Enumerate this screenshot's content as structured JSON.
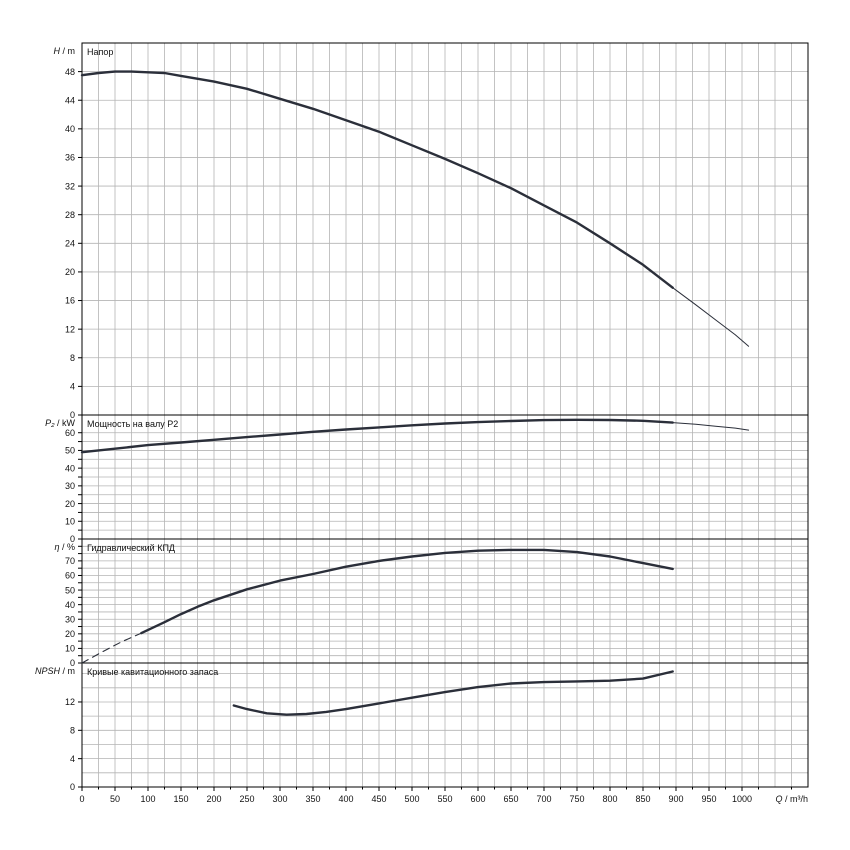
{
  "chart_data": {
    "type": "line",
    "x_axis": {
      "label": "Q / m³/h",
      "min": 0,
      "max": 1100,
      "ticks": [
        0,
        50,
        100,
        150,
        200,
        250,
        300,
        350,
        400,
        450,
        500,
        550,
        600,
        650,
        700,
        750,
        800,
        850,
        900,
        950,
        1000
      ]
    },
    "panels": [
      {
        "id": "head",
        "title": "Напор",
        "y_label_main": "H",
        "y_label_unit": "m",
        "ylim": [
          0,
          52
        ],
        "yticks": [
          0,
          4,
          8,
          12,
          16,
          20,
          24,
          28,
          32,
          36,
          40,
          44,
          48
        ],
        "series": [
          {
            "segments": [
              {
                "style": "thick",
                "x": [
                  0,
                  25,
                  50,
                  75,
                  100,
                  125,
                  150,
                  200,
                  250,
                  300,
                  350,
                  400,
                  450,
                  500,
                  550,
                  600,
                  650,
                  700,
                  750,
                  800,
                  850,
                  895
                ],
                "y": [
                  47.5,
                  47.8,
                  48.0,
                  48.0,
                  47.9,
                  47.8,
                  47.4,
                  46.6,
                  45.6,
                  44.2,
                  42.8,
                  41.2,
                  39.6,
                  37.7,
                  35.8,
                  33.8,
                  31.7,
                  29.3,
                  26.9,
                  24.0,
                  21.0,
                  17.8
                ]
              },
              {
                "style": "thin",
                "x": [
                  895,
                  930,
                  960,
                  990,
                  1010
                ],
                "y": [
                  17.8,
                  15.4,
                  13.3,
                  11.2,
                  9.6
                ]
              }
            ]
          }
        ]
      },
      {
        "id": "power",
        "title": "Мощность на валу P2",
        "y_label_main": "P₂",
        "y_label_unit": "kW",
        "ylim": [
          0,
          70
        ],
        "yticks": [
          0,
          5,
          10,
          15,
          20,
          25,
          30,
          35,
          40,
          45,
          50,
          55,
          60
        ],
        "tick_labels_shown": [
          0,
          10,
          20,
          30,
          40,
          50,
          60
        ],
        "series": [
          {
            "segments": [
              {
                "style": "thick",
                "x": [
                  0,
                  50,
                  100,
                  150,
                  200,
                  250,
                  300,
                  350,
                  400,
                  450,
                  500,
                  550,
                  600,
                  650,
                  700,
                  750,
                  800,
                  850,
                  895
                ],
                "y": [
                  49,
                  51,
                  53,
                  54.5,
                  56,
                  57.5,
                  59,
                  60.5,
                  61.8,
                  63,
                  64.2,
                  65.2,
                  66,
                  66.6,
                  67.1,
                  67.3,
                  67.2,
                  66.7,
                  65.7
                ]
              },
              {
                "style": "thin",
                "x": [
                  895,
                  930,
                  960,
                  990,
                  1010
                ],
                "y": [
                  65.7,
                  64.8,
                  63.7,
                  62.6,
                  61.5
                ]
              }
            ]
          }
        ]
      },
      {
        "id": "efficiency",
        "title": "Гидравлический КПД",
        "y_label_main": "η",
        "y_label_unit": "%",
        "ylim": [
          0,
          85
        ],
        "yticks": [
          0,
          5,
          10,
          15,
          20,
          25,
          30,
          35,
          40,
          45,
          50,
          55,
          60,
          65,
          70,
          75,
          80
        ],
        "tick_labels_shown": [
          0,
          10,
          20,
          30,
          40,
          50,
          60,
          70
        ],
        "series": [
          {
            "segments": [
              {
                "style": "dashed",
                "x": [
                  0,
                  30,
                  60,
                  90
                ],
                "y": [
                  0,
                  7.5,
                  14.5,
                  20.5
                ]
              },
              {
                "style": "thick",
                "x": [
                  90,
                  125,
                  150,
                  175,
                  200,
                  250,
                  300,
                  350,
                  400,
                  450,
                  500,
                  550,
                  600,
                  650,
                  700,
                  750,
                  800,
                  850,
                  895
                ],
                "y": [
                  20.5,
                  28,
                  33.5,
                  38.5,
                  43,
                  50.5,
                  56.5,
                  61,
                  66,
                  70,
                  73,
                  75.5,
                  77,
                  77.5,
                  77.5,
                  76,
                  73,
                  68.5,
                  64.5
                ]
              }
            ]
          }
        ]
      },
      {
        "id": "npsh",
        "title": "Кривые кавитационного запаса",
        "y_label_main": "NPSH",
        "y_label_unit": "m",
        "ylim": [
          0,
          17.5
        ],
        "yticks": [
          0,
          4,
          8,
          12
        ],
        "minor_ytick_step": 2,
        "series": [
          {
            "segments": [
              {
                "style": "thick",
                "x": [
                  230,
                  250,
                  280,
                  310,
                  340,
                  370,
                  400,
                  450,
                  500,
                  550,
                  600,
                  650,
                  700,
                  750,
                  800,
                  850,
                  895
                ],
                "y": [
                  11.5,
                  11.0,
                  10.4,
                  10.2,
                  10.3,
                  10.6,
                  11.0,
                  11.8,
                  12.6,
                  13.4,
                  14.1,
                  14.6,
                  14.8,
                  14.9,
                  15.0,
                  15.3,
                  16.3
                ]
              }
            ]
          }
        ]
      }
    ]
  }
}
